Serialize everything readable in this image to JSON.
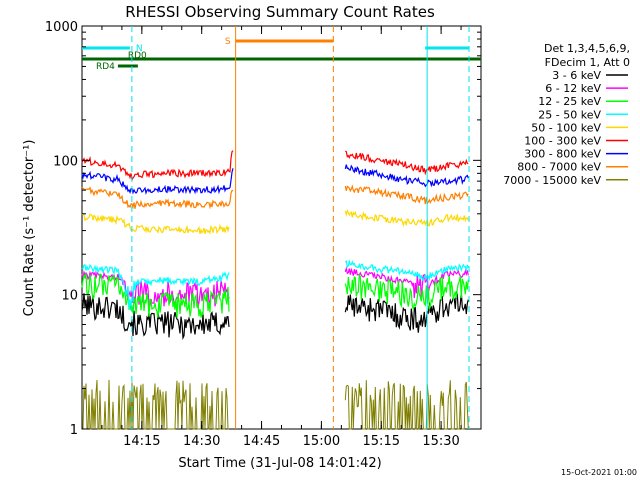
{
  "chart_data": {
    "type": "line",
    "title": "RHESSI Observing Summary Count Rates",
    "xlabel": "Start Time (31-Jul-08 14:01:42)",
    "ylabel": "Count Rate (s⁻¹ detector⁻¹)",
    "footer": "15-Oct-2021 01:00",
    "y_scale": "log",
    "ylim": [
      1,
      1000
    ],
    "xlim_minutes": [
      0,
      100
    ],
    "x_ticks": [
      {
        "label": "14:15",
        "minute": 15
      },
      {
        "label": "14:30",
        "minute": 30
      },
      {
        "label": "14:45",
        "minute": 45
      },
      {
        "label": "15:00",
        "minute": 60
      },
      {
        "label": "15:15",
        "minute": 75
      },
      {
        "label": "15:30",
        "minute": 90
      }
    ],
    "y_ticks": [
      {
        "label": "1",
        "value": 1
      },
      {
        "label": "10",
        "value": 10
      },
      {
        "label": "100",
        "value": 100
      },
      {
        "label": "1000",
        "value": 1000
      }
    ],
    "legend": {
      "placement": "right",
      "header": [
        "Det 1,3,4,5,6,9,",
        "FDecim 1, Att 0"
      ]
    },
    "flags": [
      {
        "label": "N",
        "color": "#00e5ee",
        "segments": [
          [
            0,
            12
          ],
          [
            86,
            97
          ]
        ],
        "level": 1
      },
      {
        "label": "RD0",
        "color": "#006400",
        "segments": [
          [
            0,
            100
          ]
        ],
        "level": 0
      },
      {
        "label": "RD4",
        "color": "#006400",
        "segments": [
          [
            9,
            14
          ]
        ],
        "level": 2
      },
      {
        "label": "S",
        "color": "#ff7f00",
        "segments": [
          [
            38.5,
            63
          ]
        ],
        "level": 3
      }
    ],
    "markers": [
      {
        "minute": 12.5,
        "color": "#00e5ee",
        "style": "dashed"
      },
      {
        "minute": 86.5,
        "color": "#00e5ee",
        "style": "solid"
      },
      {
        "minute": 97,
        "color": "#00e5ee",
        "style": "dashed"
      },
      {
        "minute": 38.5,
        "color": "#ff7f00",
        "style": "solid"
      },
      {
        "minute": 63,
        "color": "#ff7f00",
        "style": "dashed"
      }
    ],
    "series": [
      {
        "name": "3 - 6 keV",
        "color": "#000000",
        "segments": [
          [
            [
              0,
              8.5
            ],
            [
              9,
              8.0
            ],
            [
              10,
              7.0
            ],
            [
              12,
              6.5
            ],
            [
              14,
              6.0
            ],
            [
              20,
              6.2
            ],
            [
              30,
              6.0
            ],
            [
              37,
              6.3
            ]
          ],
          [
            [
              66,
              8.5
            ],
            [
              75,
              7.8
            ],
            [
              80,
              7.0
            ],
            [
              85,
              6.5
            ],
            [
              90,
              8.2
            ],
            [
              97,
              9.0
            ]
          ]
        ]
      },
      {
        "name": "6 - 12 keV",
        "color": "#ff00ff",
        "segments": [
          [
            [
              0,
              14
            ],
            [
              9,
              13.5
            ],
            [
              12,
              11
            ],
            [
              14,
              10.5
            ],
            [
              20,
              10.3
            ],
            [
              30,
              10.0
            ],
            [
              37,
              11
            ]
          ],
          [
            [
              66,
              15
            ],
            [
              75,
              13.5
            ],
            [
              80,
              12.5
            ],
            [
              86,
              11.5
            ],
            [
              91,
              14
            ],
            [
              97,
              14.5
            ]
          ]
        ]
      },
      {
        "name": "12 - 25 keV",
        "color": "#00ff00",
        "segments": [
          [
            [
              0,
              12
            ],
            [
              9,
              11.5
            ],
            [
              12,
              9.0
            ],
            [
              14,
              8.5
            ],
            [
              20,
              8.5
            ],
            [
              30,
              8.3
            ],
            [
              37,
              9.5
            ]
          ],
          [
            [
              66,
              12
            ],
            [
              75,
              11
            ],
            [
              80,
              10.5
            ],
            [
              86,
              9.5
            ],
            [
              91,
              11.5
            ],
            [
              97,
              11.5
            ]
          ]
        ]
      },
      {
        "name": "25 - 50 keV",
        "color": "#00ffff",
        "segments": [
          [
            [
              0,
              16
            ],
            [
              9,
              15
            ],
            [
              12,
              9.5
            ],
            [
              14,
              12.5
            ],
            [
              20,
              12.8
            ],
            [
              30,
              12.5
            ],
            [
              37,
              14
            ]
          ],
          [
            [
              66,
              17
            ],
            [
              75,
              15.5
            ],
            [
              80,
              15
            ],
            [
              86,
              13.5
            ],
            [
              91,
              15.5
            ],
            [
              97,
              16
            ]
          ]
        ]
      },
      {
        "name": "50 - 100 keV",
        "color": "#ffd700",
        "segments": [
          [
            [
              0,
              38
            ],
            [
              9,
              36
            ],
            [
              12,
              32
            ],
            [
              14,
              31
            ],
            [
              20,
              30.5
            ],
            [
              30,
              30
            ],
            [
              37,
              31
            ]
          ],
          [
            [
              66,
              40
            ],
            [
              75,
              37
            ],
            [
              80,
              35
            ],
            [
              86,
              34
            ],
            [
              91,
              37
            ],
            [
              97,
              38
            ]
          ]
        ]
      },
      {
        "name": "100 - 300 keV",
        "color": "#ff0000",
        "segments": [
          [
            [
              0,
              100
            ],
            [
              9,
              92
            ],
            [
              12,
              75
            ],
            [
              14,
              78
            ],
            [
              20,
              80
            ],
            [
              30,
              80
            ],
            [
              37,
              82
            ],
            [
              38,
              130
            ]
          ],
          [
            [
              66,
              112
            ],
            [
              75,
              100
            ],
            [
              80,
              94
            ],
            [
              86,
              85
            ],
            [
              91,
              90
            ],
            [
              97,
              95
            ]
          ]
        ]
      },
      {
        "name": "300 - 800 keV",
        "color": "#0000ff",
        "segments": [
          [
            [
              0,
              78
            ],
            [
              9,
              72
            ],
            [
              12,
              58
            ],
            [
              14,
              60
            ],
            [
              20,
              61
            ],
            [
              30,
              60
            ],
            [
              37,
              62
            ],
            [
              38,
              90
            ]
          ],
          [
            [
              66,
              88
            ],
            [
              75,
              78
            ],
            [
              80,
              72
            ],
            [
              86,
              68
            ],
            [
              91,
              70
            ],
            [
              97,
              73
            ]
          ]
        ]
      },
      {
        "name": "800 - 7000 keV",
        "color": "#ff7f00",
        "segments": [
          [
            [
              0,
              60
            ],
            [
              9,
              56
            ],
            [
              12,
              45
            ],
            [
              14,
              47
            ],
            [
              20,
              48
            ],
            [
              30,
              47
            ],
            [
              37,
              48
            ],
            [
              38,
              65
            ]
          ],
          [
            [
              66,
              62
            ],
            [
              75,
              58
            ],
            [
              80,
              55
            ],
            [
              86,
              50
            ],
            [
              91,
              53
            ],
            [
              97,
              55
            ]
          ]
        ]
      },
      {
        "name": "7000 - 15000 keV",
        "color": "#808000",
        "segments": [
          [
            [
              0,
              1.8
            ],
            [
              37,
              1.8
            ]
          ],
          [
            [
              66,
              1.8
            ],
            [
              97,
              1.8
            ]
          ]
        ]
      }
    ]
  }
}
